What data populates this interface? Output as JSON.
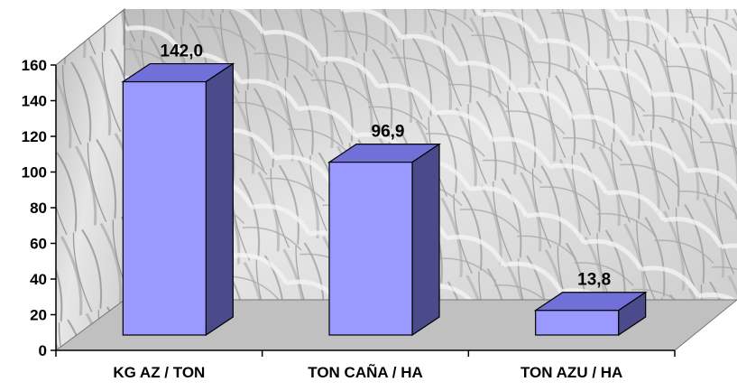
{
  "chart_data": {
    "type": "bar",
    "style": "3d-column",
    "background": "photo of sugarcane plants (grayscale)",
    "categories": [
      "KG AZ / TON",
      "TON CAÑA / HA",
      "TON AZU / HA"
    ],
    "values": [
      142.0,
      96.9,
      13.8
    ],
    "data_labels": [
      "142,0",
      "96,9",
      "13,8"
    ],
    "yticks": [
      "0",
      "20",
      "40",
      "60",
      "80",
      "100",
      "120",
      "140",
      "160"
    ],
    "ylim": [
      0,
      160
    ],
    "title": "",
    "xlabel": "",
    "ylabel": "",
    "legend": false,
    "colors": {
      "bar_front": "#9999ff",
      "bar_side": "#4b4b8c",
      "bar_top": "#7070d8",
      "floor": "#c0c0c0",
      "photo_tone": "#dcdcdc"
    }
  }
}
